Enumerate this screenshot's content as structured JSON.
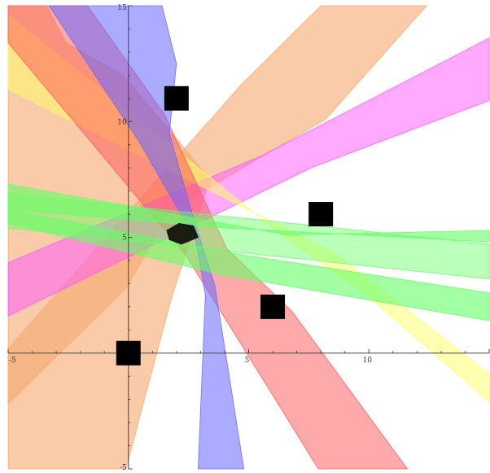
{
  "chart_data": {
    "type": "area",
    "title": "",
    "xlabel": "",
    "ylabel": "",
    "xlim": [
      -5,
      15
    ],
    "ylim": [
      -5,
      15
    ],
    "x_ticks": [
      {
        "value": -5,
        "label": "-5"
      },
      {
        "value": 5,
        "label": "5"
      },
      {
        "value": 10,
        "label": "10"
      }
    ],
    "y_ticks": [
      {
        "value": 15,
        "label": "15"
      },
      {
        "value": 10,
        "label": "10"
      },
      {
        "value": 5,
        "label": "5"
      },
      {
        "value": -5,
        "label": "-5"
      }
    ],
    "grid": false,
    "legend": "none",
    "series": [
      {
        "color": "#f5a96e",
        "opacity": 0.6,
        "polygon": [
          [
            -5,
            0.2
          ],
          [
            4.7,
            11.6
          ],
          [
            8.0,
            15
          ],
          [
            12.4,
            15
          ],
          [
            8.2,
            10.1
          ],
          [
            1.8,
            6.2
          ],
          [
            -0.1,
            2.8
          ],
          [
            -5,
            -2.2
          ]
        ]
      },
      {
        "color": "#f5a96e",
        "opacity": 0.6,
        "polygon": [
          [
            -5,
            13.6
          ],
          [
            -5,
            15
          ],
          [
            -3.4,
            15
          ],
          [
            -2.6,
            13.4
          ],
          [
            -0.2,
            12.0
          ],
          [
            3.4,
            7.5
          ],
          [
            1.8,
            2.4
          ],
          [
            -0.1,
            -5
          ],
          [
            -5,
            -5
          ]
        ]
      },
      {
        "color": "#ff55ff",
        "opacity": 0.5,
        "polygon": [
          [
            -5,
            3.9
          ],
          [
            5.5,
            8.5
          ],
          [
            15,
            13.6
          ],
          [
            15,
            10.9
          ],
          [
            7.6,
            8.0
          ],
          [
            -5,
            1.6
          ]
        ]
      },
      {
        "color": "#ffff66",
        "opacity": 0.5,
        "polygon": [
          [
            -5,
            14.6
          ],
          [
            6.5,
            5.0
          ],
          [
            9.8,
            2.6
          ],
          [
            15,
            -2.1
          ],
          [
            15,
            -0.9
          ],
          [
            8.6,
            4.3
          ],
          [
            -5,
            11.4
          ]
        ]
      },
      {
        "color": "#ff5555",
        "opacity": 0.5,
        "polygon": [
          [
            -5,
            15
          ],
          [
            -1.7,
            15
          ],
          [
            1.5,
            10.3
          ],
          [
            4.1,
            4.5
          ],
          [
            6.8,
            1.8
          ],
          [
            11.6,
            -5
          ],
          [
            7.9,
            -5
          ],
          [
            2.4,
            4.2
          ],
          [
            -5,
            13.4
          ]
        ]
      },
      {
        "color": "#6666ff",
        "opacity": 0.55,
        "polygon": [
          [
            -2.5,
            15
          ],
          [
            -3.3,
            15
          ],
          [
            0.4,
            9.2
          ],
          [
            2.8,
            4.9
          ],
          [
            3.2,
            2.5
          ],
          [
            2.9,
            -5
          ],
          [
            4.8,
            -5
          ],
          [
            3.6,
            2.9
          ],
          [
            2.6,
            6.2
          ],
          [
            1.7,
            9.5
          ],
          [
            2.0,
            12.5
          ],
          [
            1.4,
            15
          ]
        ]
      },
      {
        "color": "#66ff66",
        "opacity": 0.6,
        "polygon": [
          [
            -5,
            7.3
          ],
          [
            6.6,
            5.1
          ],
          [
            15,
            5.3
          ],
          [
            15,
            4.8
          ],
          [
            4.1,
            5.4
          ],
          [
            -5,
            6.2
          ]
        ]
      },
      {
        "color": "#66ff66",
        "opacity": 0.6,
        "polygon": [
          [
            -5,
            6.2
          ],
          [
            4.4,
            4.3
          ],
          [
            15,
            2.6
          ],
          [
            15,
            1.4
          ],
          [
            3.8,
            3.4
          ],
          [
            -5,
            5.6
          ]
        ]
      },
      {
        "color": "#66ff66",
        "opacity": 0.45,
        "polygon": [
          [
            -5,
            6.9
          ],
          [
            15,
            4.7
          ],
          [
            15,
            3.2
          ],
          [
            -5,
            5.4
          ]
        ]
      },
      {
        "color": "#000000",
        "opacity": 0.85,
        "polygon": [
          [
            1.6,
            5.3
          ],
          [
            2.1,
            5.6
          ],
          [
            2.7,
            5.5
          ],
          [
            2.9,
            5.0
          ],
          [
            2.2,
            4.7
          ],
          [
            1.7,
            4.9
          ]
        ]
      }
    ],
    "markers": [
      {
        "x": 2.0,
        "y": 11.0
      },
      {
        "x": 8.0,
        "y": 6.0
      },
      {
        "x": 6.0,
        "y": 2.0
      },
      {
        "x": 0.0,
        "y": 0.0
      }
    ]
  }
}
